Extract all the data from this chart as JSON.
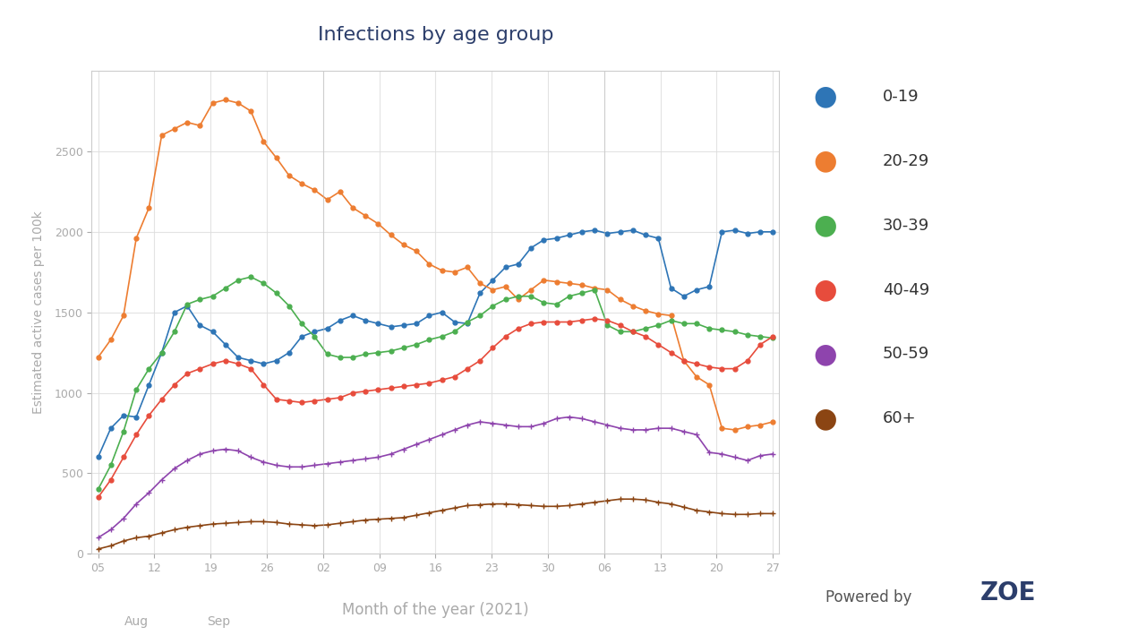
{
  "title": "Infections by age group",
  "xlabel": "Month of the year (2021)",
  "ylabel": "Estimated active cases per 100k",
  "background_color": "#ffffff",
  "plot_bg_color": "#ffffff",
  "title_color": "#2c3e6b",
  "xlabel_color": "#aaaaaa",
  "ylabel_color": "#aaaaaa",
  "tick_color": "#aaaaaa",
  "grid_color": "#dddddd",
  "ylim": [
    0,
    3000
  ],
  "yticks": [
    0,
    500,
    1000,
    1500,
    2000,
    2500
  ],
  "x_tick_labels": [
    "05",
    "12",
    "19",
    "26",
    "02",
    "09",
    "16",
    "23",
    "30",
    "06",
    "13",
    "20",
    "27"
  ],
  "x_month_labels": [
    [
      "Aug",
      3.0
    ],
    [
      "Sep",
      9.5
    ]
  ],
  "series": {
    "0-19": {
      "color": "#2e75b6",
      "marker": "o",
      "values": [
        600,
        780,
        860,
        850,
        1050,
        1250,
        1500,
        1540,
        1420,
        1380,
        1300,
        1220,
        1200,
        1180,
        1200,
        1250,
        1350,
        1380,
        1400,
        1450,
        1480,
        1450,
        1430,
        1410,
        1420,
        1430,
        1480,
        1500,
        1440,
        1430,
        1620,
        1700,
        1780,
        1800,
        1900,
        1950,
        1960,
        1980,
        2000,
        2010,
        1990,
        2000,
        2010,
        1980,
        1960,
        1650,
        1600,
        1640,
        1660,
        2000,
        2010,
        1990,
        2000,
        2000
      ]
    },
    "20-29": {
      "color": "#ed7d31",
      "marker": "o",
      "values": [
        1220,
        1330,
        1480,
        1960,
        2150,
        2600,
        2640,
        2680,
        2660,
        2800,
        2820,
        2800,
        2750,
        2560,
        2460,
        2350,
        2300,
        2260,
        2200,
        2250,
        2150,
        2100,
        2050,
        1980,
        1920,
        1880,
        1800,
        1760,
        1750,
        1780,
        1680,
        1640,
        1660,
        1580,
        1640,
        1700,
        1690,
        1680,
        1670,
        1650,
        1640,
        1580,
        1540,
        1510,
        1490,
        1480,
        1200,
        1100,
        1050,
        780,
        770,
        790,
        800,
        820
      ]
    },
    "30-39": {
      "color": "#4caf50",
      "marker": "o",
      "values": [
        400,
        550,
        760,
        1020,
        1150,
        1250,
        1380,
        1550,
        1580,
        1600,
        1650,
        1700,
        1720,
        1680,
        1620,
        1540,
        1430,
        1350,
        1240,
        1220,
        1220,
        1240,
        1250,
        1260,
        1280,
        1300,
        1330,
        1350,
        1380,
        1440,
        1480,
        1540,
        1580,
        1600,
        1600,
        1560,
        1550,
        1600,
        1620,
        1640,
        1420,
        1380,
        1380,
        1400,
        1420,
        1450,
        1430,
        1430,
        1400,
        1390,
        1380,
        1360,
        1350,
        1340
      ]
    },
    "40-49": {
      "color": "#e74c3c",
      "marker": "o",
      "values": [
        350,
        460,
        600,
        740,
        860,
        960,
        1050,
        1120,
        1150,
        1180,
        1200,
        1180,
        1150,
        1050,
        960,
        950,
        940,
        950,
        960,
        970,
        1000,
        1010,
        1020,
        1030,
        1040,
        1050,
        1060,
        1080,
        1100,
        1150,
        1200,
        1280,
        1350,
        1400,
        1430,
        1440,
        1440,
        1440,
        1450,
        1460,
        1450,
        1420,
        1380,
        1350,
        1300,
        1250,
        1200,
        1180,
        1160,
        1150,
        1150,
        1200,
        1300,
        1350
      ]
    },
    "50-59": {
      "color": "#8e44ad",
      "marker": "+",
      "values": [
        100,
        150,
        220,
        310,
        380,
        460,
        530,
        580,
        620,
        640,
        650,
        640,
        600,
        570,
        550,
        540,
        540,
        550,
        560,
        570,
        580,
        590,
        600,
        620,
        650,
        680,
        710,
        740,
        770,
        800,
        820,
        810,
        800,
        790,
        790,
        810,
        840,
        850,
        840,
        820,
        800,
        780,
        770,
        770,
        780,
        780,
        760,
        740,
        630,
        620,
        600,
        580,
        610,
        620
      ]
    },
    "60+": {
      "color": "#8B4513",
      "marker": "+",
      "values": [
        30,
        50,
        80,
        100,
        110,
        130,
        150,
        165,
        175,
        185,
        190,
        195,
        200,
        200,
        195,
        185,
        180,
        175,
        180,
        190,
        200,
        210,
        215,
        220,
        225,
        240,
        255,
        270,
        285,
        300,
        305,
        310,
        310,
        305,
        300,
        295,
        295,
        300,
        310,
        320,
        330,
        340,
        340,
        335,
        320,
        310,
        290,
        270,
        260,
        250,
        245,
        245,
        250,
        250
      ]
    }
  },
  "powered_by": "Powered by ZOE",
  "n_points": 54
}
